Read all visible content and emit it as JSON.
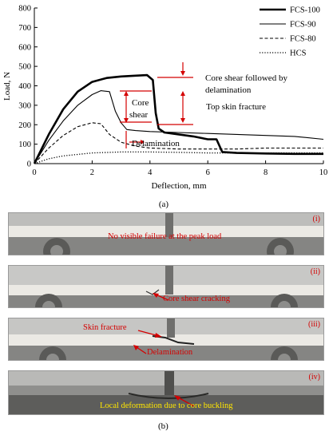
{
  "chart_data": {
    "type": "line",
    "caption": "(a)",
    "xlabel": "Deflection, mm",
    "ylabel": "Load, N",
    "xlim": [
      0,
      10
    ],
    "ylim": [
      0,
      800
    ],
    "xticks": [
      "0",
      "2",
      "4",
      "6",
      "8",
      "10"
    ],
    "yticks": [
      "0",
      "100",
      "200",
      "300",
      "400",
      "500",
      "600",
      "700",
      "800"
    ],
    "legend_position": "top-right",
    "series": [
      {
        "name": "FCS-100",
        "style": "thick-solid",
        "x": [
          0,
          0.5,
          1,
          1.5,
          2,
          2.5,
          3,
          3.5,
          3.9,
          4.1,
          4.2,
          4.3,
          4.5,
          5,
          5.5,
          6,
          6.3,
          6.5,
          7,
          8,
          9,
          10
        ],
        "y": [
          0,
          150,
          280,
          370,
          420,
          440,
          448,
          452,
          455,
          430,
          260,
          180,
          160,
          150,
          140,
          125,
          125,
          60,
          55,
          52,
          50,
          50
        ]
      },
      {
        "name": "FCS-90",
        "style": "solid",
        "x": [
          0,
          0.5,
          1,
          1.5,
          2,
          2.3,
          2.6,
          2.8,
          3.0,
          3.2,
          3.5,
          4,
          5,
          6,
          7,
          8,
          9,
          10
        ],
        "y": [
          0,
          120,
          220,
          300,
          355,
          375,
          370,
          270,
          210,
          175,
          170,
          165,
          160,
          155,
          150,
          145,
          140,
          125
        ]
      },
      {
        "name": "FCS-80",
        "style": "dashed",
        "x": [
          0,
          0.5,
          1,
          1.5,
          2,
          2.3,
          2.6,
          3.0,
          3.5,
          4,
          5,
          6,
          7,
          8,
          9,
          10
        ],
        "y": [
          0,
          80,
          145,
          190,
          210,
          205,
          150,
          110,
          90,
          80,
          75,
          75,
          75,
          80,
          80,
          80
        ]
      },
      {
        "name": "HCS",
        "style": "dotted",
        "x": [
          0,
          0.5,
          1,
          2,
          3,
          4,
          5,
          6,
          7,
          8,
          9,
          10
        ],
        "y": [
          0,
          25,
          40,
          55,
          60,
          60,
          58,
          55,
          55,
          55,
          55,
          55
        ]
      }
    ],
    "annotations": [
      {
        "text": "Core shear followed by delamination",
        "lines": [
          "Core shear followed by",
          "delamination"
        ]
      },
      {
        "text": "Top skin fracture"
      },
      {
        "text": "Core shear",
        "lines": [
          "Core",
          "shear"
        ]
      },
      {
        "text": "Delamination"
      }
    ]
  },
  "photos": {
    "caption": "(b)",
    "panels": [
      {
        "label": "(i)",
        "text": "No visible failure at the peak load"
      },
      {
        "label": "(ii)",
        "text": "Core shear cracking"
      },
      {
        "label": "(iii)",
        "text": "Skin fracture",
        "text2": "Delamination"
      },
      {
        "label": "(iv)",
        "text": "Local deformation due to core buckling"
      }
    ]
  },
  "colors": {
    "annotation": "#d40000",
    "annotation_iv": "#ffe600"
  }
}
